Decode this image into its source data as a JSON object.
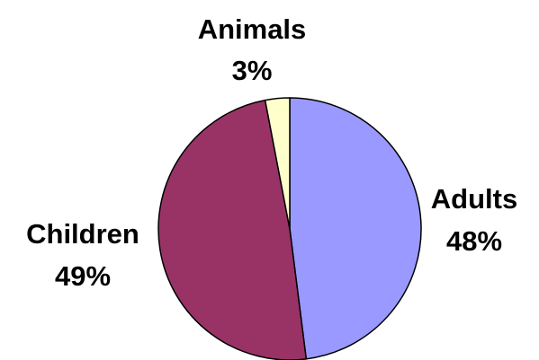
{
  "chart_data": {
    "type": "pie",
    "title": "",
    "slices": [
      {
        "label": "Adults",
        "value": 48,
        "value_label": "48%",
        "color": "#9999ff"
      },
      {
        "label": "Children",
        "value": 49,
        "value_label": "49%",
        "color": "#993366"
      },
      {
        "label": "Animals",
        "value": 3,
        "value_label": "3%",
        "color": "#ffffcc"
      }
    ],
    "legend": "none",
    "border_color": "#000000"
  }
}
